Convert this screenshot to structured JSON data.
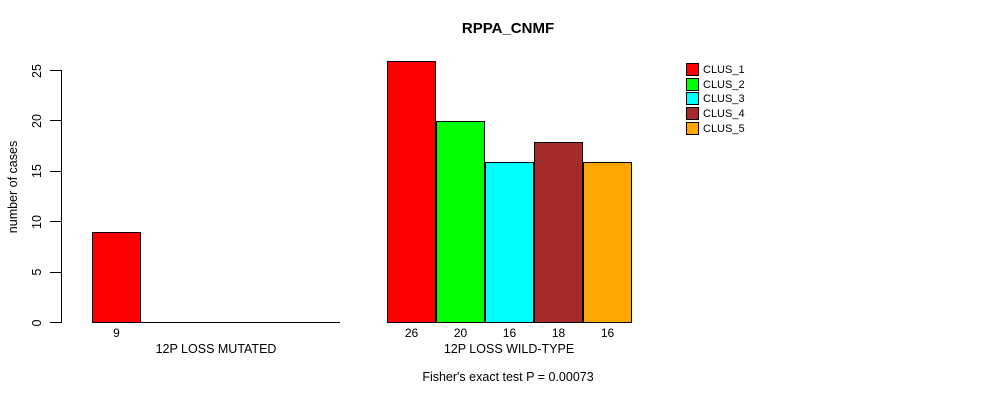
{
  "title": "RPPA_CNMF",
  "footer": "Fisher's exact test P = 0.00073",
  "chart_data": {
    "type": "bar",
    "title": "RPPA_CNMF",
    "ylabel": "number of cases",
    "ylim": [
      0,
      25
    ],
    "yticks": [
      0,
      5,
      10,
      15,
      20,
      25
    ],
    "grid": false,
    "legend_position": "top-right",
    "groups": [
      {
        "label": "12P LOSS MUTATED",
        "bars": [
          {
            "cluster": "CLUS_1",
            "value": 9,
            "color": "#FF0000"
          }
        ]
      },
      {
        "label": "12P LOSS WILD-TYPE",
        "bars": [
          {
            "cluster": "CLUS_1",
            "value": 26,
            "color": "#FF0000"
          },
          {
            "cluster": "CLUS_2",
            "value": 20,
            "color": "#00FF00"
          },
          {
            "cluster": "CLUS_3",
            "value": 16,
            "color": "#00FFFF"
          },
          {
            "cluster": "CLUS_4",
            "value": 18,
            "color": "#A52A2A"
          },
          {
            "cluster": "CLUS_5",
            "value": 16,
            "color": "#FFA500"
          }
        ]
      }
    ],
    "legend": [
      {
        "label": "CLUS_1",
        "color": "#FF0000"
      },
      {
        "label": "CLUS_2",
        "color": "#00FF00"
      },
      {
        "label": "CLUS_3",
        "color": "#00FFFF"
      },
      {
        "label": "CLUS_4",
        "color": "#A52A2A"
      },
      {
        "label": "CLUS_5",
        "color": "#FFA500"
      }
    ],
    "annotation": "Fisher's exact test P = 0.00073"
  }
}
